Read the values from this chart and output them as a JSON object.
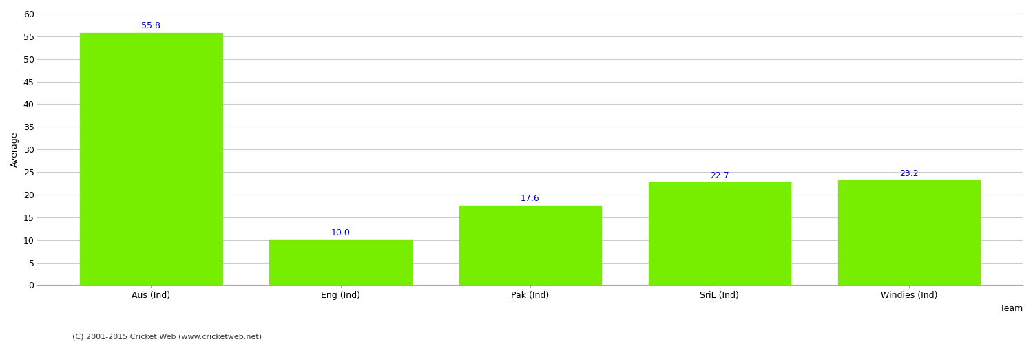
{
  "categories": [
    "Aus (Ind)",
    "Eng (Ind)",
    "Pak (Ind)",
    "SriL (Ind)",
    "Windies (Ind)"
  ],
  "values": [
    55.8,
    10.0,
    17.6,
    22.7,
    23.2
  ],
  "bar_color": "#77ee00",
  "label_color": "#0000cc",
  "xlabel": "Team",
  "ylabel": "Average",
  "ylim": [
    0,
    60
  ],
  "yticks": [
    0,
    5,
    10,
    15,
    20,
    25,
    30,
    35,
    40,
    45,
    50,
    55,
    60
  ],
  "footnote": "(C) 2001-2015 Cricket Web (www.cricketweb.net)",
  "background_color": "#ffffff",
  "grid_color": "#cccccc",
  "label_fontsize": 9,
  "axis_label_fontsize": 9,
  "tick_fontsize": 9,
  "footnote_fontsize": 8,
  "bar_width": 0.75
}
